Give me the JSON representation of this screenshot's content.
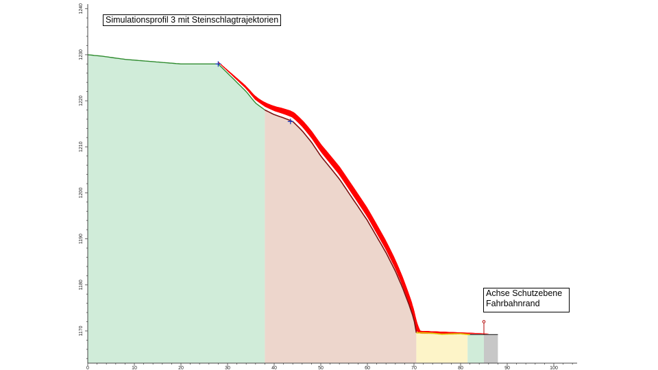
{
  "chart_data": {
    "type": "area",
    "title": "Simulationsprofil 3 mit Steinschlagtrajektorien",
    "annotation_lines": [
      "Achse Schutzebene",
      "Fahrbahnrand"
    ],
    "xlim": [
      0,
      105
    ],
    "ylim": [
      1163,
      1241
    ],
    "x_ticks": [
      0,
      10,
      20,
      30,
      40,
      50,
      60,
      70,
      80,
      90,
      100
    ],
    "y_ticks": [
      1170,
      1180,
      1190,
      1200,
      1210,
      1220,
      1230,
      1240
    ],
    "terrain": {
      "x": [
        0,
        3,
        8,
        14,
        20,
        24,
        26,
        28,
        30,
        32,
        34,
        36,
        38,
        40,
        42,
        44,
        46,
        48,
        50,
        52,
        54,
        56,
        58,
        60,
        62,
        64,
        66,
        67.5,
        69,
        70,
        70.5,
        72,
        74,
        76,
        80,
        82,
        86,
        88
      ],
      "y": [
        1230,
        1229.7,
        1229,
        1228.5,
        1228,
        1228,
        1228,
        1228,
        1226,
        1224,
        1222,
        1219.5,
        1218,
        1217,
        1216.3,
        1215.5,
        1213.5,
        1211,
        1208,
        1205.5,
        1203,
        1200,
        1197,
        1194,
        1190.5,
        1187,
        1183,
        1179.5,
        1175.5,
        1172.5,
        1169.6,
        1169.6,
        1169.5,
        1169.3,
        1169.4,
        1169.2,
        1169.2,
        1169.2
      ]
    },
    "zones": [
      {
        "x0": 0,
        "x1": 38,
        "color": "#d0ecd9"
      },
      {
        "x0": 38,
        "x1": 70.5,
        "color": "#edd6cc"
      },
      {
        "x0": 70.5,
        "x1": 81.5,
        "color": "#fdf4c8"
      },
      {
        "x0": 81.5,
        "x1": 85,
        "color": "#d0ecd9"
      },
      {
        "x0": 85,
        "x1": 88,
        "color": "#c7c7c7"
      }
    ],
    "start_points": [
      {
        "x": 28,
        "y": 1228
      },
      {
        "x": 43.5,
        "y": 1215.5
      }
    ],
    "protection_axis_x": 85,
    "trajectory_color": "#ff0000",
    "terrain_line_color": "#7a1010",
    "upper_line_color": "#2d8a2d",
    "runout_line_color": "#e0c000"
  }
}
